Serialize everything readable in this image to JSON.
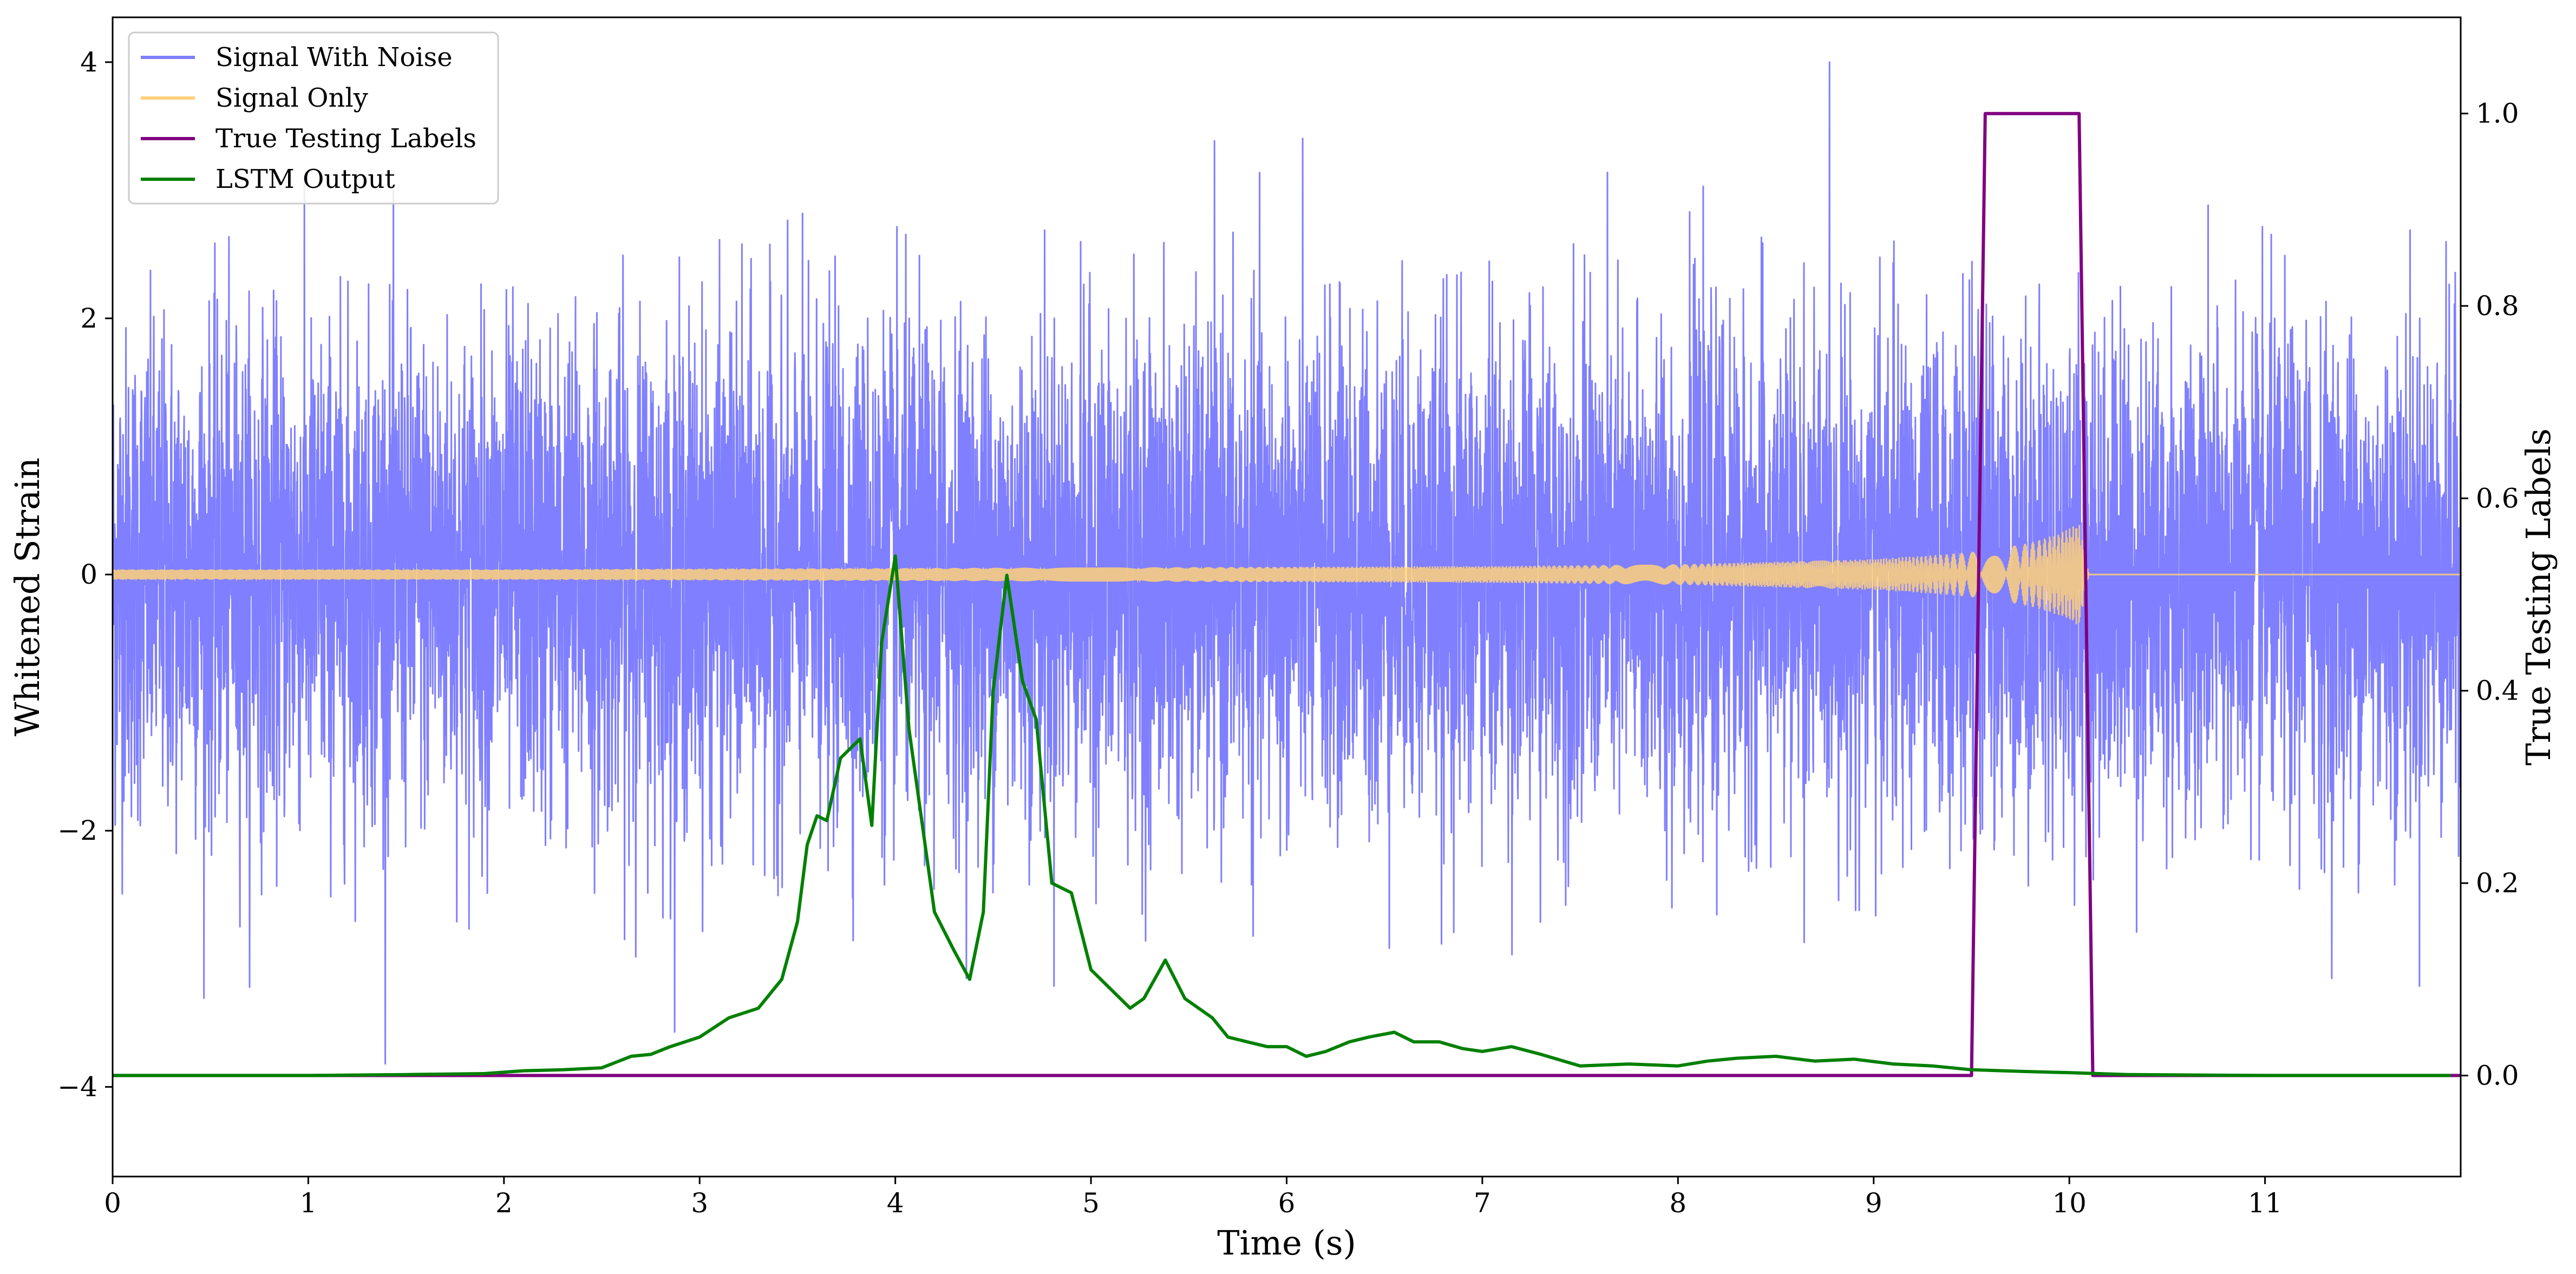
{
  "chart_data": {
    "type": "line",
    "xlabel": "Time (s)",
    "ylabel": "Whitened Strain",
    "ylabel_right": "True Testing Labels",
    "xlim": [
      0,
      12
    ],
    "ylim": [
      -4.7,
      4.35
    ],
    "ylim_right": [
      -0.105,
      1.1
    ],
    "x_ticks": [
      0,
      1,
      2,
      3,
      4,
      5,
      6,
      7,
      8,
      9,
      10,
      11
    ],
    "x_tick_labels": [
      "0",
      "1",
      "2",
      "3",
      "4",
      "5",
      "6",
      "7",
      "8",
      "9",
      "10",
      "11"
    ],
    "y_ticks": [
      -4,
      -2,
      0,
      2,
      4
    ],
    "y_tick_labels": [
      "−4",
      "−2",
      "0",
      "2",
      "4"
    ],
    "y_ticks_right": [
      0.0,
      0.2,
      0.4,
      0.6,
      0.8,
      1.0
    ],
    "y_tick_labels_right": [
      "0.0",
      "0.2",
      "0.4",
      "0.6",
      "0.8",
      "1.0"
    ],
    "grid": false,
    "legend_position": "top-left",
    "legend": [
      {
        "name": "Signal With Noise",
        "color": "#7f7fff"
      },
      {
        "name": "Signal Only",
        "color": "#ffd07a"
      },
      {
        "name": "True Testing Labels",
        "color": "#800080"
      },
      {
        "name": "LSTM Output",
        "color": "#008000"
      }
    ],
    "series": [
      {
        "name": "Signal With Noise",
        "axis": "left",
        "color": "#7f7fff",
        "kind": "noise",
        "x_range": [
          0,
          12
        ],
        "std": 0.95,
        "max": 4.0,
        "min": -4.3
      },
      {
        "name": "Signal Only",
        "axis": "left",
        "color": "#ffd07a",
        "kind": "chirp_envelope",
        "x": [
          0,
          1,
          2,
          3,
          4,
          5,
          6,
          7,
          8,
          8.5,
          9,
          9.3,
          9.6,
          9.8,
          9.95,
          10.05,
          10.1,
          12
        ],
        "envelope": [
          0.04,
          0.04,
          0.04,
          0.045,
          0.05,
          0.055,
          0.06,
          0.065,
          0.08,
          0.1,
          0.12,
          0.15,
          0.19,
          0.25,
          0.32,
          0.4,
          0.0,
          0.0
        ]
      },
      {
        "name": "True Testing Labels",
        "axis": "right",
        "color": "#800080",
        "x": [
          0,
          9.5,
          9.57,
          10.05,
          10.12,
          12
        ],
        "values": [
          0,
          0,
          1,
          1,
          0,
          0
        ]
      },
      {
        "name": "LSTM Output",
        "axis": "right",
        "color": "#008000",
        "x": [
          0,
          1.0,
          1.5,
          1.9,
          2.1,
          2.3,
          2.5,
          2.65,
          2.75,
          2.85,
          3.0,
          3.15,
          3.3,
          3.42,
          3.5,
          3.55,
          3.6,
          3.65,
          3.72,
          3.82,
          3.88,
          3.93,
          4.0,
          4.07,
          4.2,
          4.3,
          4.38,
          4.45,
          4.5,
          4.57,
          4.65,
          4.72,
          4.8,
          4.9,
          5.0,
          5.1,
          5.2,
          5.27,
          5.38,
          5.48,
          5.55,
          5.62,
          5.7,
          5.8,
          5.9,
          6.0,
          6.1,
          6.2,
          6.32,
          6.42,
          6.55,
          6.65,
          6.78,
          6.9,
          7.0,
          7.15,
          7.3,
          7.5,
          7.75,
          8.0,
          8.15,
          8.3,
          8.5,
          8.7,
          8.9,
          9.1,
          9.3,
          9.5,
          9.8,
          10.0,
          10.3,
          11.0,
          11.95
        ],
        "values": [
          0.0,
          0.0,
          0.001,
          0.002,
          0.005,
          0.006,
          0.008,
          0.02,
          0.022,
          0.03,
          0.04,
          0.06,
          0.07,
          0.1,
          0.16,
          0.24,
          0.27,
          0.265,
          0.33,
          0.35,
          0.26,
          0.45,
          0.54,
          0.36,
          0.17,
          0.13,
          0.1,
          0.17,
          0.4,
          0.52,
          0.41,
          0.37,
          0.2,
          0.19,
          0.11,
          0.09,
          0.07,
          0.08,
          0.12,
          0.08,
          0.07,
          0.06,
          0.04,
          0.035,
          0.03,
          0.03,
          0.02,
          0.025,
          0.035,
          0.04,
          0.045,
          0.035,
          0.035,
          0.028,
          0.025,
          0.03,
          0.022,
          0.01,
          0.012,
          0.01,
          0.015,
          0.018,
          0.02,
          0.015,
          0.017,
          0.012,
          0.01,
          0.006,
          0.004,
          0.003,
          0.001,
          0.0,
          0.0
        ]
      }
    ]
  }
}
